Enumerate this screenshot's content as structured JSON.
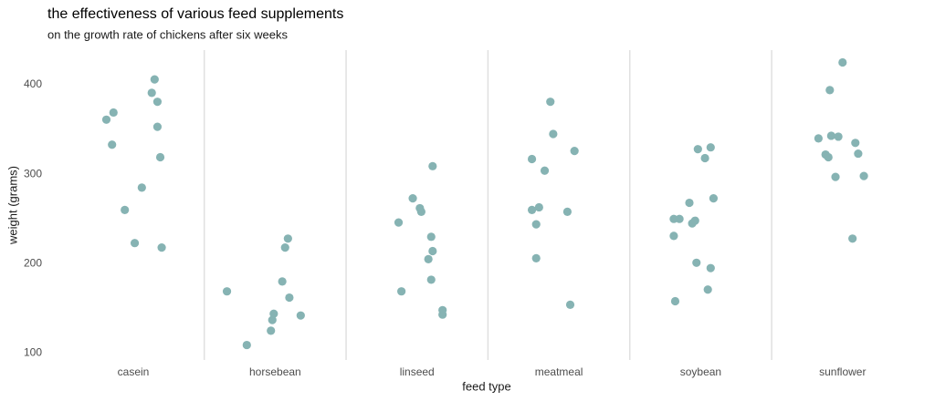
{
  "chart_data": {
    "type": "scatter",
    "title": "the effectiveness of various feed supplements",
    "subtitle": "on the growth rate of chickens after six weeks",
    "xlabel": "feed type",
    "ylabel": "weight (grams)",
    "color": "#86b3b3",
    "xlim": [
      0.4,
      6.6
    ],
    "xticks": [
      {
        "value": 1,
        "label": "casein"
      },
      {
        "value": 2,
        "label": "horsebean"
      },
      {
        "value": 3,
        "label": "linseed"
      },
      {
        "value": 4,
        "label": "meatmeal"
      },
      {
        "value": 5,
        "label": "soybean"
      },
      {
        "value": 6,
        "label": "sunflower"
      }
    ],
    "minor_xgrid": [
      1.5,
      2.5,
      3.5,
      4.5,
      5.5
    ],
    "ylim": [
      92.25,
      438.75
    ],
    "yticks": [
      100,
      200,
      300,
      400
    ],
    "x": [
      0.81,
      0.86,
      0.85,
      0.94,
      1.01,
      1.06,
      1.13,
      1.15,
      1.17,
      1.17,
      1.19,
      1.2,
      1.66,
      1.8,
      1.97,
      1.98,
      1.99,
      2.05,
      2.07,
      2.09,
      2.1,
      2.18,
      2.87,
      2.89,
      2.97,
      3.02,
      3.03,
      3.08,
      3.1,
      3.1,
      3.11,
      3.11,
      3.18,
      3.18,
      3.81,
      3.81,
      3.84,
      3.84,
      3.86,
      3.9,
      3.94,
      3.96,
      4.06,
      4.08,
      4.11,
      4.81,
      4.81,
      4.82,
      4.85,
      4.92,
      4.94,
      4.96,
      4.97,
      4.98,
      5.03,
      5.05,
      5.07,
      5.07,
      5.09,
      5.83,
      5.88,
      5.9,
      5.91,
      5.92,
      5.95,
      5.97,
      6.0,
      6.07,
      6.09,
      6.11,
      6.15
    ],
    "values": [
      361,
      369,
      333,
      260,
      223,
      285,
      391,
      406,
      381,
      353,
      319,
      218,
      169,
      109,
      125,
      137,
      144,
      180,
      218,
      228,
      162,
      142,
      246,
      169,
      273,
      262,
      258,
      205,
      230,
      182,
      214,
      309,
      148,
      143,
      317,
      260,
      244,
      206,
      263,
      304,
      381,
      345,
      258,
      154,
      326,
      250,
      231,
      158,
      250,
      268,
      245,
      248,
      201,
      328,
      318,
      171,
      330,
      195,
      273,
      340,
      322,
      319,
      394,
      343,
      297,
      342,
      425,
      228,
      335,
      323,
      298
    ]
  }
}
